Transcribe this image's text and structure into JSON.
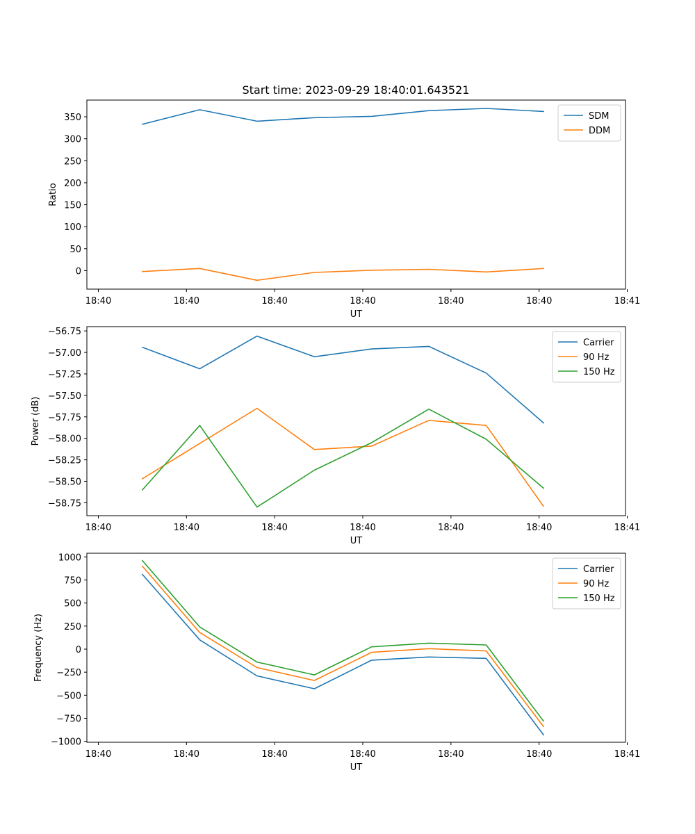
{
  "title": "Start time: 2023-09-29 18:40:01.643521",
  "chart_data": [
    {
      "type": "line",
      "title": "Start time: 2023-09-29 18:40:01.643521",
      "xlabel": "UT",
      "ylabel": "Ratio",
      "x_tick_labels": [
        "18:40",
        "18:40",
        "18:40",
        "18:40",
        "18:40",
        "18:40",
        "18:41"
      ],
      "y_ticks": [
        0,
        50,
        100,
        150,
        200,
        250,
        300,
        350
      ],
      "ylim": [
        -42,
        388
      ],
      "legend_position": "top-right",
      "x": [
        0.5,
        1.15,
        1.8,
        2.45,
        3.1,
        3.75,
        4.4,
        5.05
      ],
      "xlim": [
        -0.13,
        5.98
      ],
      "series": [
        {
          "name": "SDM",
          "color": "#1f77b4",
          "values": [
            333,
            366,
            340,
            348,
            351,
            364,
            369,
            362
          ]
        },
        {
          "name": "DDM",
          "color": "#ff7f0e",
          "values": [
            -2,
            5,
            -22,
            -4,
            1,
            3,
            -3,
            5
          ]
        }
      ]
    },
    {
      "type": "line",
      "title": "",
      "xlabel": "UT",
      "ylabel": "Power (dB)",
      "x_tick_labels": [
        "18:40",
        "18:40",
        "18:40",
        "18:40",
        "18:40",
        "18:40",
        "18:41"
      ],
      "y_ticks": [
        -58.75,
        -58.5,
        -58.25,
        -58.0,
        -57.75,
        -57.5,
        -57.25,
        -57.0,
        -56.75
      ],
      "y_tick_labels": [
        "−58.75",
        "−58.50",
        "−58.25",
        "−58.00",
        "−57.75",
        "−57.50",
        "−57.25",
        "−57.00",
        "−56.75"
      ],
      "ylim": [
        -58.9,
        -56.7
      ],
      "legend_position": "top-right",
      "x": [
        0.5,
        1.15,
        1.8,
        2.45,
        3.1,
        3.75,
        4.4,
        5.05
      ],
      "xlim": [
        -0.13,
        5.98
      ],
      "series": [
        {
          "name": "Carrier",
          "color": "#1f77b4",
          "values": [
            -56.94,
            -57.19,
            -56.81,
            -57.05,
            -56.96,
            -56.93,
            -57.24,
            -57.82
          ]
        },
        {
          "name": "90 Hz",
          "color": "#ff7f0e",
          "values": [
            -58.47,
            -58.06,
            -57.65,
            -58.13,
            -58.09,
            -57.79,
            -57.85,
            -58.79
          ]
        },
        {
          "name": "150 Hz",
          "color": "#2ca02c",
          "values": [
            -58.6,
            -57.85,
            -58.8,
            -58.37,
            -58.05,
            -57.66,
            -58.01,
            -58.58
          ]
        }
      ]
    },
    {
      "type": "line",
      "title": "",
      "xlabel": "UT",
      "ylabel": "Frequency (Hz)",
      "x_tick_labels": [
        "18:40",
        "18:40",
        "18:40",
        "18:40",
        "18:40",
        "18:40",
        "18:41"
      ],
      "y_ticks": [
        -1000,
        -750,
        -500,
        -250,
        0,
        250,
        500,
        750,
        1000
      ],
      "y_tick_labels": [
        "−1000",
        "−750",
        "−500",
        "−250",
        "0",
        "250",
        "500",
        "750",
        "1000"
      ],
      "ylim": [
        -1010,
        1040
      ],
      "legend_position": "top-right",
      "x": [
        0.5,
        1.15,
        1.8,
        2.45,
        3.1,
        3.75,
        4.4,
        5.05
      ],
      "xlim": [
        -0.13,
        5.98
      ],
      "series": [
        {
          "name": "Carrier",
          "color": "#1f77b4",
          "values": [
            810,
            100,
            -290,
            -430,
            -120,
            -85,
            -100,
            -930
          ]
        },
        {
          "name": "90 Hz",
          "color": "#ff7f0e",
          "values": [
            900,
            180,
            -200,
            -340,
            -35,
            5,
            -20,
            -840
          ]
        },
        {
          "name": "150 Hz",
          "color": "#2ca02c",
          "values": [
            960,
            240,
            -140,
            -280,
            25,
            65,
            45,
            -780
          ]
        }
      ]
    }
  ]
}
